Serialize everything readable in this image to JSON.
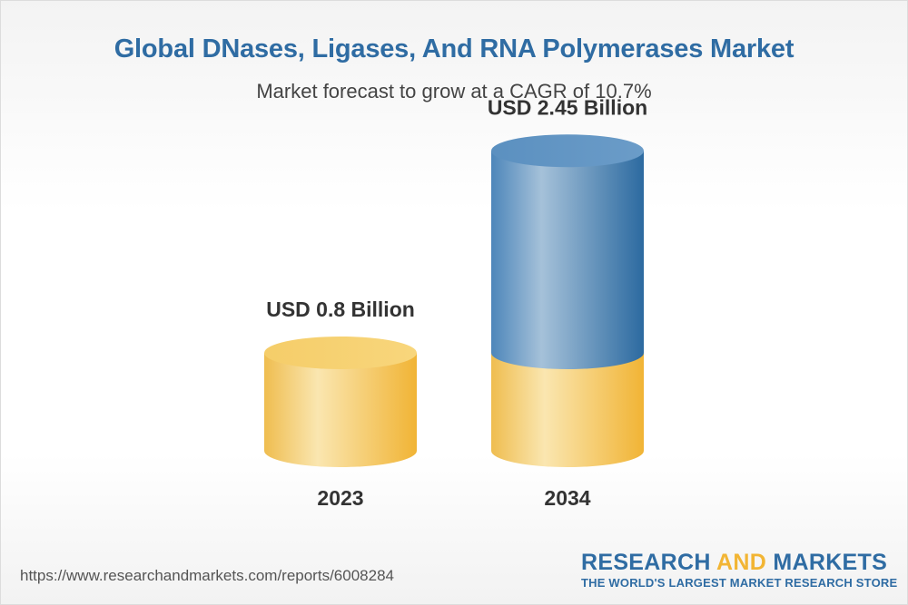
{
  "title": "Global DNases, Ligases, And RNA Polymerases Market",
  "subtitle": "Market forecast to grow at a CAGR of 10.7%",
  "footer": {
    "url": "https://www.researchandmarkets.com/reports/6008284"
  },
  "brand": {
    "name_part1": "RESEARCH",
    "name_part2": "AND",
    "name_part3": "MARKETS",
    "tagline": "THE WORLD'S LARGEST MARKET RESEARCH STORE"
  },
  "colors": {
    "title": "#2f6ca3",
    "gold": "#f2b534",
    "blue": "#3f7db3"
  },
  "chart_data": {
    "type": "bar",
    "style": "3d-cylinder",
    "categories": [
      "2023",
      "2034"
    ],
    "values": [
      0.8,
      2.45
    ],
    "value_labels": [
      "USD 0.8 Billion",
      "USD 2.45 Billion"
    ],
    "unit": "USD Billion",
    "cagr": "10.7%",
    "base_value": 0.8
  }
}
